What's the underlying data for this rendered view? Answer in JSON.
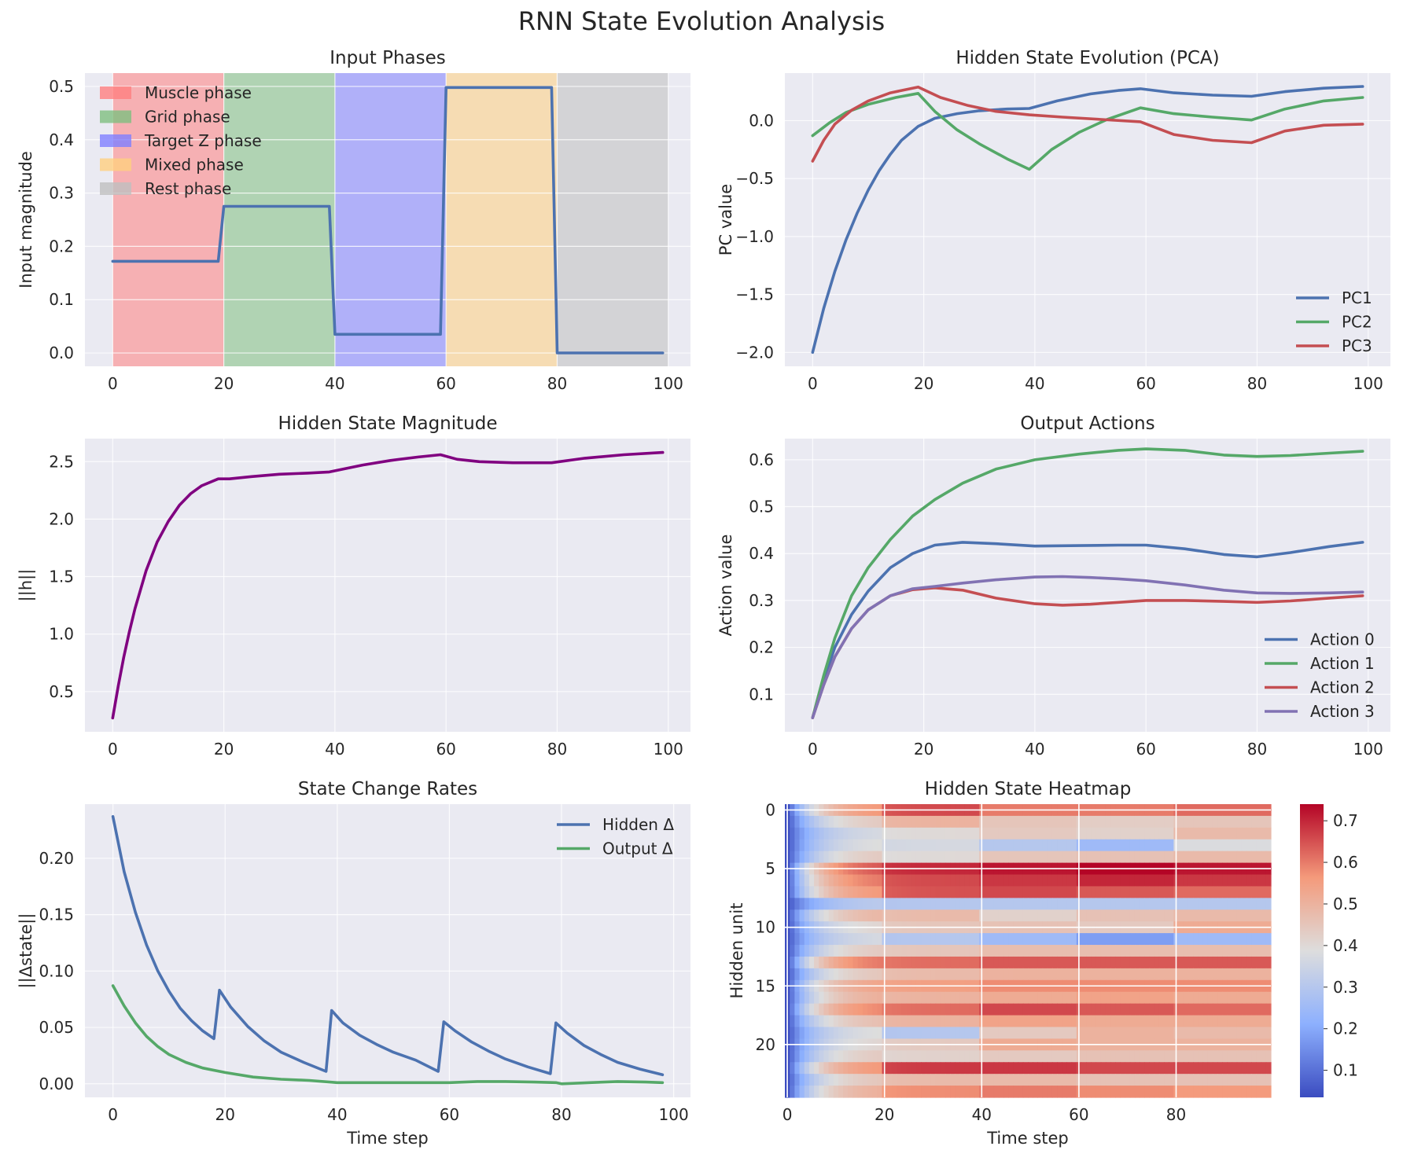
{
  "figure": {
    "title": "RNN State Evolution Analysis"
  },
  "colors": {
    "axes_bg": "#eaeaf2",
    "grid": "#ffffff",
    "text": "#262626",
    "blue": "#4c72b0",
    "green": "#55a868",
    "red": "#c44e52",
    "purple": "#8172b3",
    "magenta": "#800080",
    "muscle": "#ff7f7f",
    "grid_phase": "#7fbf7f",
    "target": "#8080ff",
    "mixed": "#ffd080",
    "rest": "#bfbfbf"
  },
  "chart_data": [
    {
      "id": "input",
      "type": "area",
      "title": "Input Phases",
      "xlabel": "",
      "ylabel": "Input magnitude",
      "xlim": [
        -5,
        104
      ],
      "ylim": [
        -0.025,
        0.525
      ],
      "xticks": [
        0,
        20,
        40,
        60,
        80,
        100
      ],
      "yticks": [
        0.0,
        0.1,
        0.2,
        0.3,
        0.4,
        0.5
      ],
      "ytick_labels": [
        "0.0",
        "0.1",
        "0.2",
        "0.3",
        "0.4",
        "0.5"
      ],
      "phases": [
        {
          "name": "Muscle phase",
          "start": 0,
          "end": 20,
          "color": "#ff7f7f"
        },
        {
          "name": "Grid phase",
          "start": 20,
          "end": 40,
          "color": "#7fbf7f"
        },
        {
          "name": "Target Z phase",
          "start": 40,
          "end": 60,
          "color": "#8080ff"
        },
        {
          "name": "Mixed phase",
          "start": 60,
          "end": 80,
          "color": "#ffd080"
        },
        {
          "name": "Rest phase",
          "start": 80,
          "end": 100,
          "color": "#bfbfbf"
        }
      ],
      "series": [
        {
          "color": "#4c72b0",
          "x": [
            0,
            19,
            20,
            39,
            40,
            59,
            60,
            79,
            80,
            99
          ],
          "y": [
            0.172,
            0.172,
            0.275,
            0.275,
            0.035,
            0.035,
            0.498,
            0.498,
            0.0,
            0.0
          ]
        }
      ],
      "legend": "upper-left"
    },
    {
      "id": "pca",
      "type": "line",
      "title": "Hidden State Evolution (PCA)",
      "xlabel": "",
      "ylabel": "PC value",
      "xlim": [
        -5,
        104
      ],
      "ylim": [
        -2.12,
        0.41
      ],
      "xticks": [
        0,
        20,
        40,
        60,
        80,
        100
      ],
      "yticks": [
        -2.0,
        -1.5,
        -1.0,
        -0.5,
        0.0
      ],
      "ytick_labels": [
        "−2.0",
        "−1.5",
        "−1.0",
        "−0.5",
        "0.0"
      ],
      "series": [
        {
          "name": "PC1",
          "color": "#4c72b0",
          "x": [
            0,
            2,
            4,
            6,
            8,
            10,
            12,
            14,
            16,
            19,
            22,
            26,
            30,
            35,
            39,
            44,
            50,
            55,
            59,
            65,
            72,
            79,
            85,
            92,
            99
          ],
          "y": [
            -2.0,
            -1.62,
            -1.3,
            -1.03,
            -0.8,
            -0.6,
            -0.43,
            -0.29,
            -0.17,
            -0.05,
            0.02,
            0.06,
            0.085,
            0.1,
            0.105,
            0.17,
            0.23,
            0.26,
            0.275,
            0.24,
            0.22,
            0.21,
            0.25,
            0.28,
            0.295
          ]
        },
        {
          "name": "PC2",
          "color": "#55a868",
          "x": [
            0,
            3,
            6,
            10,
            15,
            19,
            22,
            26,
            30,
            35,
            39,
            43,
            48,
            53,
            59,
            65,
            72,
            79,
            85,
            92,
            99
          ],
          "y": [
            -0.13,
            -0.02,
            0.07,
            0.14,
            0.2,
            0.235,
            0.08,
            -0.08,
            -0.2,
            -0.33,
            -0.42,
            -0.25,
            -0.1,
            0.01,
            0.11,
            0.06,
            0.03,
            0.005,
            0.1,
            0.17,
            0.2
          ]
        },
        {
          "name": "PC3",
          "color": "#c44e52",
          "x": [
            0,
            2,
            4,
            7,
            10,
            14,
            19,
            23,
            28,
            33,
            39,
            45,
            52,
            59,
            65,
            72,
            79,
            85,
            92,
            99
          ],
          "y": [
            -0.35,
            -0.17,
            -0.03,
            0.09,
            0.17,
            0.24,
            0.29,
            0.2,
            0.13,
            0.08,
            0.05,
            0.03,
            0.01,
            -0.01,
            -0.12,
            -0.17,
            -0.19,
            -0.09,
            -0.04,
            -0.03
          ]
        }
      ],
      "legend": "lower-right"
    },
    {
      "id": "magnitude",
      "type": "line",
      "title": "Hidden State Magnitude",
      "xlabel": "",
      "ylabel": "||h||",
      "xlim": [
        -5,
        104
      ],
      "ylim": [
        0.15,
        2.7
      ],
      "xticks": [
        0,
        20,
        40,
        60,
        80,
        100
      ],
      "yticks": [
        0.5,
        1.0,
        1.5,
        2.0,
        2.5
      ],
      "ytick_labels": [
        "0.5",
        "1.0",
        "1.5",
        "2.0",
        "2.5"
      ],
      "series": [
        {
          "color": "#800080",
          "x": [
            0,
            1,
            2,
            3,
            4,
            6,
            8,
            10,
            12,
            14,
            16,
            19,
            21,
            25,
            30,
            35,
            39,
            45,
            50,
            55,
            59,
            62,
            66,
            72,
            79,
            85,
            92,
            99
          ],
          "y": [
            0.27,
            0.55,
            0.8,
            1.02,
            1.22,
            1.55,
            1.8,
            1.98,
            2.12,
            2.22,
            2.29,
            2.35,
            2.35,
            2.37,
            2.39,
            2.4,
            2.41,
            2.47,
            2.51,
            2.54,
            2.56,
            2.52,
            2.5,
            2.49,
            2.49,
            2.53,
            2.56,
            2.58
          ]
        }
      ]
    },
    {
      "id": "actions",
      "type": "line",
      "title": "Output Actions",
      "xlabel": "",
      "ylabel": "Action value",
      "xlim": [
        -5,
        104
      ],
      "ylim": [
        0.02,
        0.645
      ],
      "xticks": [
        0,
        20,
        40,
        60,
        80,
        100
      ],
      "yticks": [
        0.1,
        0.2,
        0.3,
        0.4,
        0.5,
        0.6
      ],
      "ytick_labels": [
        "0.1",
        "0.2",
        "0.3",
        "0.4",
        "0.5",
        "0.6"
      ],
      "series": [
        {
          "name": "Action 0",
          "color": "#4c72b0",
          "x": [
            0,
            2,
            4,
            7,
            10,
            14,
            18,
            22,
            27,
            33,
            40,
            48,
            55,
            60,
            67,
            74,
            80,
            86,
            93,
            99
          ],
          "y": [
            0.05,
            0.13,
            0.2,
            0.27,
            0.32,
            0.37,
            0.4,
            0.418,
            0.424,
            0.421,
            0.416,
            0.417,
            0.418,
            0.418,
            0.41,
            0.398,
            0.393,
            0.402,
            0.415,
            0.424
          ]
        },
        {
          "name": "Action 1",
          "color": "#55a868",
          "x": [
            0,
            2,
            4,
            7,
            10,
            14,
            18,
            22,
            27,
            33,
            40,
            48,
            55,
            60,
            67,
            74,
            80,
            86,
            93,
            99
          ],
          "y": [
            0.05,
            0.14,
            0.22,
            0.31,
            0.37,
            0.43,
            0.48,
            0.515,
            0.55,
            0.58,
            0.6,
            0.612,
            0.62,
            0.623,
            0.62,
            0.61,
            0.607,
            0.609,
            0.614,
            0.618
          ]
        },
        {
          "name": "Action 2",
          "color": "#c44e52",
          "x": [
            0,
            2,
            4,
            7,
            10,
            14,
            18,
            22,
            27,
            33,
            40,
            45,
            50,
            55,
            60,
            67,
            74,
            80,
            86,
            93,
            99
          ],
          "y": [
            0.05,
            0.12,
            0.18,
            0.24,
            0.28,
            0.31,
            0.323,
            0.327,
            0.322,
            0.305,
            0.293,
            0.29,
            0.292,
            0.296,
            0.3,
            0.3,
            0.298,
            0.296,
            0.299,
            0.305,
            0.31
          ]
        },
        {
          "name": "Action 3",
          "color": "#8172b3",
          "x": [
            0,
            2,
            4,
            7,
            10,
            14,
            18,
            22,
            27,
            33,
            40,
            45,
            50,
            55,
            60,
            67,
            74,
            80,
            86,
            93,
            99
          ],
          "y": [
            0.05,
            0.12,
            0.18,
            0.24,
            0.28,
            0.31,
            0.325,
            0.33,
            0.337,
            0.344,
            0.35,
            0.351,
            0.349,
            0.346,
            0.342,
            0.333,
            0.322,
            0.316,
            0.315,
            0.316,
            0.318
          ]
        }
      ],
      "legend": "lower-right"
    },
    {
      "id": "rates",
      "type": "line",
      "title": "State Change Rates",
      "xlabel": "Time step",
      "ylabel": "||Δstate||",
      "xlim": [
        -5,
        103
      ],
      "ylim": [
        -0.012,
        0.248
      ],
      "xticks": [
        0,
        20,
        40,
        60,
        80,
        100
      ],
      "yticks": [
        0.0,
        0.05,
        0.1,
        0.15,
        0.2
      ],
      "ytick_labels": [
        "0.00",
        "0.05",
        "0.10",
        "0.15",
        "0.20"
      ],
      "series": [
        {
          "name": "Hidden Δ",
          "color": "#4c72b0",
          "x": [
            0,
            2,
            4,
            6,
            8,
            10,
            12,
            14,
            16,
            18,
            19,
            21,
            24,
            27,
            30,
            34,
            38,
            39,
            41,
            44,
            47,
            50,
            54,
            58,
            59,
            61,
            64,
            67,
            70,
            74,
            78,
            79,
            81,
            84,
            87,
            90,
            94,
            98
          ],
          "y": [
            0.237,
            0.188,
            0.152,
            0.123,
            0.1,
            0.082,
            0.067,
            0.056,
            0.047,
            0.04,
            0.083,
            0.068,
            0.051,
            0.038,
            0.028,
            0.019,
            0.011,
            0.065,
            0.054,
            0.043,
            0.035,
            0.028,
            0.021,
            0.011,
            0.055,
            0.047,
            0.037,
            0.029,
            0.022,
            0.015,
            0.009,
            0.054,
            0.045,
            0.034,
            0.026,
            0.019,
            0.013,
            0.008
          ]
        },
        {
          "name": "Output Δ",
          "color": "#55a868",
          "x": [
            0,
            2,
            4,
            6,
            8,
            10,
            13,
            16,
            20,
            25,
            30,
            35,
            40,
            45,
            50,
            55,
            60,
            65,
            70,
            75,
            79,
            80,
            85,
            90,
            95,
            98
          ],
          "y": [
            0.087,
            0.069,
            0.054,
            0.042,
            0.033,
            0.026,
            0.019,
            0.014,
            0.01,
            0.006,
            0.004,
            0.003,
            0.001,
            0.001,
            0.001,
            0.001,
            0.001,
            0.002,
            0.002,
            0.0015,
            0.001,
            0.0,
            0.001,
            0.002,
            0.0015,
            0.001
          ]
        }
      ],
      "legend": "upper-right"
    },
    {
      "id": "heatmap",
      "type": "heatmap",
      "title": "Hidden State Heatmap",
      "xlabel": "Time step",
      "ylabel": "Hidden unit",
      "xticks": [
        0,
        20,
        40,
        60,
        80
      ],
      "yticks": [
        0,
        5,
        10,
        15,
        20
      ],
      "n_units": 25,
      "n_steps": 100,
      "colorbar_ticks": [
        0.1,
        0.2,
        0.3,
        0.4,
        0.5,
        0.6,
        0.7
      ],
      "colorbar_tick_labels": [
        "0.1",
        "0.2",
        "0.3",
        "0.4",
        "0.5",
        "0.6",
        "0.7"
      ],
      "vmin": 0.035,
      "vmax": 0.74,
      "unit_levels": [
        [
          0.58,
          0.66,
          0.6,
          0.6,
          0.62
        ],
        [
          0.45,
          0.5,
          0.45,
          0.43,
          0.45
        ],
        [
          0.38,
          0.4,
          0.44,
          0.42,
          0.48
        ],
        [
          0.4,
          0.37,
          0.3,
          0.25,
          0.38
        ],
        [
          0.45,
          0.4,
          0.45,
          0.46,
          0.48
        ],
        [
          0.66,
          0.7,
          0.72,
          0.74,
          0.72
        ],
        [
          0.62,
          0.66,
          0.68,
          0.7,
          0.68
        ],
        [
          0.58,
          0.65,
          0.66,
          0.64,
          0.62
        ],
        [
          0.32,
          0.3,
          0.3,
          0.3,
          0.3
        ],
        [
          0.5,
          0.48,
          0.42,
          0.46,
          0.48
        ],
        [
          0.42,
          0.45,
          0.46,
          0.44,
          0.52
        ],
        [
          0.38,
          0.3,
          0.25,
          0.18,
          0.25
        ],
        [
          0.45,
          0.45,
          0.47,
          0.47,
          0.47
        ],
        [
          0.62,
          0.62,
          0.64,
          0.64,
          0.64
        ],
        [
          0.46,
          0.48,
          0.5,
          0.5,
          0.5
        ],
        [
          0.55,
          0.55,
          0.58,
          0.58,
          0.58
        ],
        [
          0.52,
          0.5,
          0.52,
          0.54,
          0.52
        ],
        [
          0.6,
          0.62,
          0.66,
          0.64,
          0.62
        ],
        [
          0.48,
          0.5,
          0.54,
          0.52,
          0.52
        ],
        [
          0.4,
          0.3,
          0.44,
          0.5,
          0.48
        ],
        [
          0.42,
          0.44,
          0.52,
          0.5,
          0.5
        ],
        [
          0.45,
          0.42,
          0.44,
          0.46,
          0.46
        ],
        [
          0.58,
          0.68,
          0.68,
          0.66,
          0.66
        ],
        [
          0.46,
          0.48,
          0.48,
          0.46,
          0.46
        ],
        [
          0.52,
          0.58,
          0.6,
          0.58,
          0.56
        ]
      ]
    }
  ]
}
